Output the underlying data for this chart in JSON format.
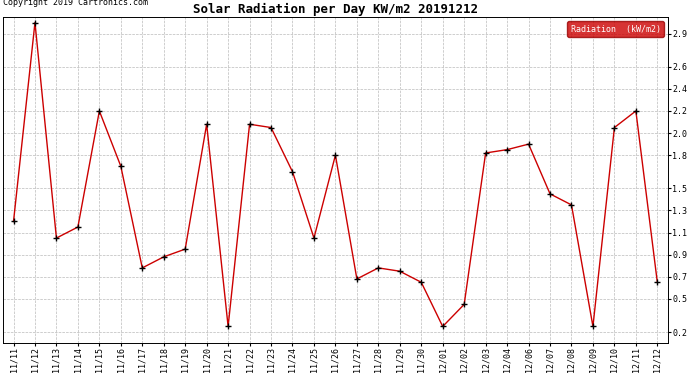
{
  "title": "Solar Radiation per Day KW/m2 20191212",
  "copyright": "Copyright 2019 Cartronics.com",
  "legend_label": "Radiation  (kW/m2)",
  "dates": [
    "11/11",
    "11/12",
    "11/13",
    "11/14",
    "11/15",
    "11/16",
    "11/17",
    "11/18",
    "11/19",
    "11/20",
    "11/21",
    "11/22",
    "11/23",
    "11/24",
    "11/25",
    "11/26",
    "11/27",
    "11/28",
    "11/29",
    "11/30",
    "12/01",
    "12/02",
    "12/03",
    "12/04",
    "12/06",
    "12/07",
    "12/08",
    "12/09",
    "12/10",
    "12/11",
    "12/12"
  ],
  "values": [
    1.2,
    3.0,
    1.05,
    1.15,
    2.2,
    1.7,
    0.78,
    0.88,
    0.95,
    2.08,
    0.25,
    2.08,
    2.05,
    1.65,
    1.05,
    1.8,
    0.68,
    0.78,
    0.75,
    0.65,
    0.25,
    0.45,
    1.82,
    1.85,
    1.9,
    1.45,
    1.35,
    0.25,
    2.05,
    2.2,
    0.65
  ],
  "ylim": [
    0.1,
    3.05
  ],
  "yticks": [
    0.2,
    0.5,
    0.7,
    0.9,
    1.1,
    1.3,
    1.5,
    1.8,
    2.0,
    2.2,
    2.4,
    2.6,
    2.9
  ],
  "line_color": "#cc0000",
  "marker_color": "#000000",
  "bg_color": "#ffffff",
  "grid_color": "#bbbbbb",
  "legend_bg": "#cc0000",
  "legend_text_color": "#ffffff",
  "title_fontsize": 9,
  "tick_fontsize": 6,
  "copyright_fontsize": 6
}
